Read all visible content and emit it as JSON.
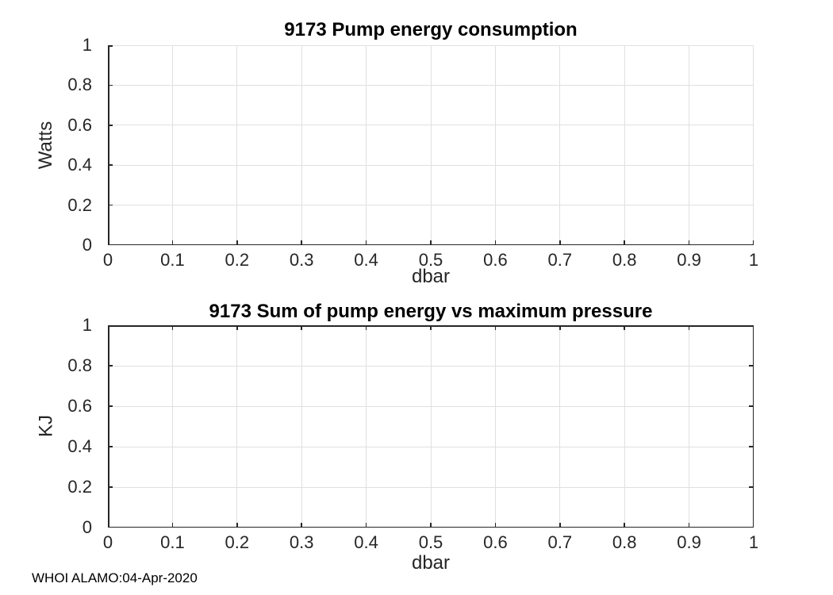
{
  "figure": {
    "background": "#ffffff"
  },
  "colors": {
    "axis": "#262626",
    "grid": "#e0e0e0",
    "title": "#000000"
  },
  "footer": {
    "text": "WHOI ALAMO:04-Apr-2020"
  },
  "chart_data": [
    {
      "type": "line",
      "title": "9173 Pump energy consumption",
      "xlabel": "dbar",
      "ylabel": "Watts",
      "xlim": [
        0,
        1
      ],
      "ylim": [
        0,
        1
      ],
      "xticks": [
        0,
        0.1,
        0.2,
        0.3,
        0.4,
        0.5,
        0.6,
        0.7,
        0.8,
        0.9,
        1
      ],
      "yticks": [
        0,
        0.2,
        0.4,
        0.6,
        0.8,
        1
      ],
      "grid": true,
      "box": false,
      "legend": null,
      "series": []
    },
    {
      "type": "line",
      "title": "9173 Sum of pump energy vs maximum pressure",
      "xlabel": "dbar",
      "ylabel": "KJ",
      "xlim": [
        0,
        1
      ],
      "ylim": [
        0,
        1
      ],
      "xticks": [
        0,
        0.1,
        0.2,
        0.3,
        0.4,
        0.5,
        0.6,
        0.7,
        0.8,
        0.9,
        1
      ],
      "yticks": [
        0,
        0.2,
        0.4,
        0.6,
        0.8,
        1
      ],
      "grid": true,
      "box": true,
      "legend": null,
      "series": []
    }
  ]
}
